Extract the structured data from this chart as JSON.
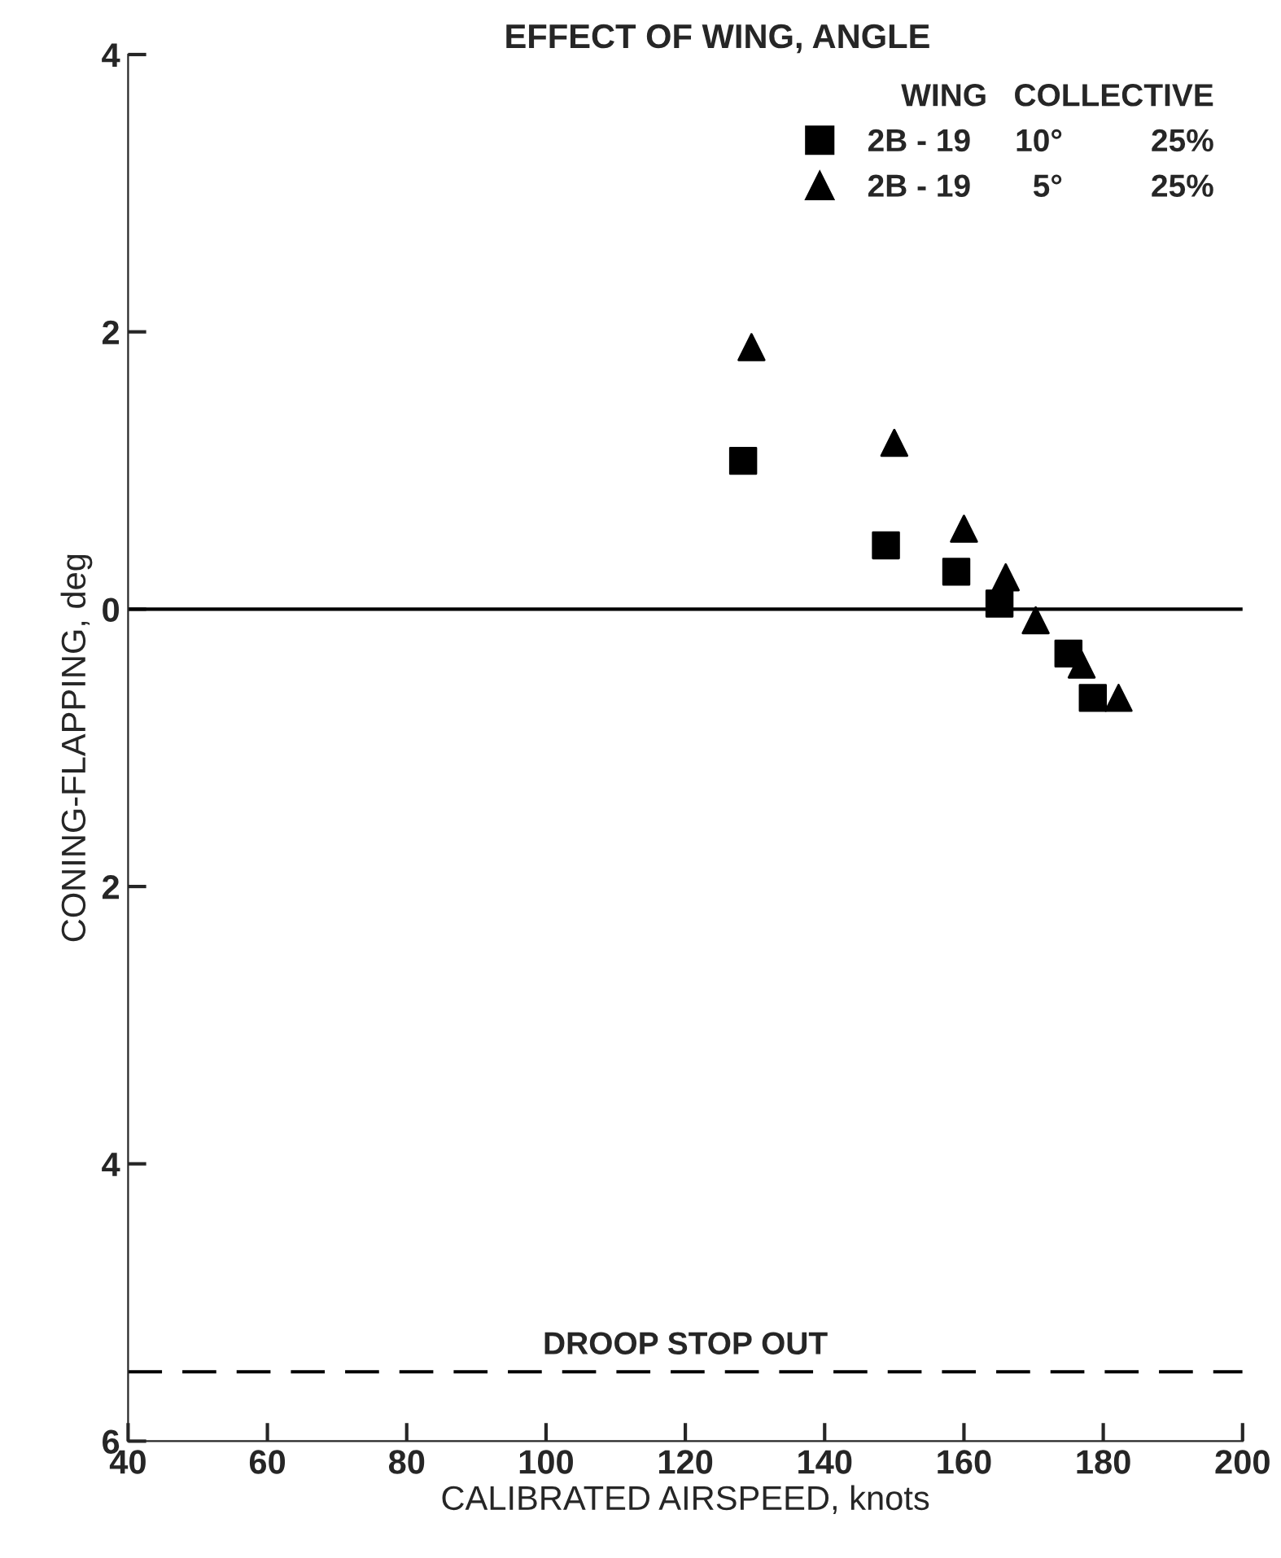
{
  "chart_data": {
    "type": "scatter",
    "title": "EFFECT OF WING, ANGLE",
    "xlabel": "CALIBRATED AIRSPEED, knots",
    "ylabel": "CONING-FLAPPING, deg",
    "legend_title": "WING   COLLECTIVE",
    "legend": "top right",
    "grid": false,
    "xlim": [
      40,
      200
    ],
    "xticks": [
      40,
      60,
      80,
      100,
      120,
      140,
      160,
      180,
      200
    ],
    "ylim": [
      -6,
      4
    ],
    "yticks": [
      {
        "value": 4,
        "label": "4"
      },
      {
        "value": 2,
        "label": "2"
      },
      {
        "value": 0,
        "label": "0"
      },
      {
        "value": -2,
        "label": "2"
      },
      {
        "value": -4,
        "label": "4"
      },
      {
        "value": -6,
        "label": "6"
      }
    ],
    "series": [
      {
        "name": "2B - 19     10°          25%",
        "color": "#000000",
        "marker": "square",
        "x": [
          128.3,
          148.8,
          158.9,
          165.1,
          175.0,
          178.5
        ],
        "values": [
          1.07,
          0.46,
          0.27,
          0.04,
          -0.32,
          -0.64
        ]
      },
      {
        "name": "2B - 19       5°          25%",
        "color": "#000000",
        "marker": "triangle",
        "x": [
          129.5,
          150.0,
          160.0,
          166.0,
          170.3,
          176.9,
          182.2
        ],
        "values": [
          1.89,
          1.2,
          0.58,
          0.23,
          -0.08,
          -0.4,
          -0.64
        ]
      }
    ],
    "ref_lines": [
      {
        "axis": "y",
        "value": 0,
        "color": "#000000",
        "line_style": "solid"
      },
      {
        "axis": "y",
        "value": -5.5,
        "label": "DROOP STOP OUT",
        "color": "#000000",
        "line_style": "dashed"
      }
    ]
  }
}
